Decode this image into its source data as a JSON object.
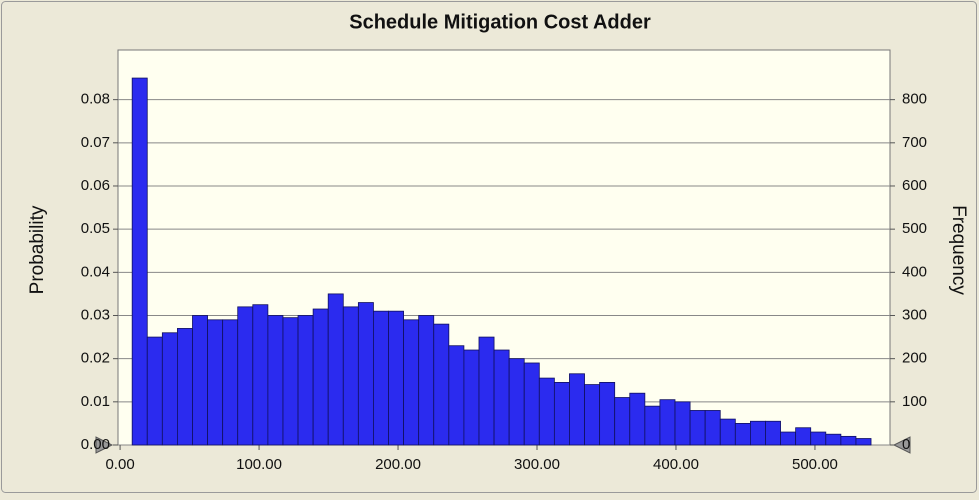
{
  "chart_data": {
    "type": "histogram",
    "title": "Schedule Mitigation Cost Adder",
    "ylabel": "Probability",
    "y2label": "Frequency",
    "color": "#2b2bef",
    "grid": true,
    "bins": [
      8.7,
      19.55,
      30.4,
      41.25,
      52.1,
      62.95,
      73.8,
      84.65,
      95.5,
      106.35,
      117.2,
      128.05,
      138.9,
      149.75,
      160.6,
      171.45,
      182.3,
      193.15,
      204,
      214.85,
      225.7,
      236.55,
      247.4,
      258.25,
      269.1,
      279.95,
      290.8,
      301.65,
      312.5,
      323.35,
      334.2,
      345.05,
      355.9,
      366.75,
      377.6,
      388.45,
      399.3,
      410.15,
      421,
      431.85,
      442.7,
      453.55,
      464.4,
      475.25,
      486.1,
      496.95,
      507.8,
      518.65,
      529.5,
      540.35
    ],
    "values": [
      0.085,
      0.025,
      0.026,
      0.027,
      0.03,
      0.029,
      0.029,
      0.032,
      0.0325,
      0.03,
      0.0295,
      0.03,
      0.0315,
      0.035,
      0.032,
      0.033,
      0.031,
      0.031,
      0.029,
      0.03,
      0.028,
      0.023,
      0.022,
      0.025,
      0.022,
      0.02,
      0.019,
      0.0155,
      0.0145,
      0.0165,
      0.014,
      0.0145,
      0.011,
      0.012,
      0.009,
      0.0105,
      0.01,
      0.008,
      0.008,
      0.006,
      0.005,
      0.0055,
      0.0055,
      0.003,
      0.004,
      0.003,
      0.0025,
      0.002,
      0.0015
    ],
    "xlim": [
      -1.5,
      554
    ],
    "xticks": [
      {
        "value": 0,
        "label": "0.00"
      },
      {
        "value": 100,
        "label": "100.00"
      },
      {
        "value": 200,
        "label": "200.00"
      },
      {
        "value": 300,
        "label": "300.00"
      },
      {
        "value": 400,
        "label": "400.00"
      },
      {
        "value": 500,
        "label": "500.00"
      }
    ],
    "ylim": [
      0,
      0.0915
    ],
    "yticks": [
      {
        "value": 0,
        "label": "0.00"
      },
      0.01,
      0.02,
      0.03,
      0.04,
      0.05,
      0.06,
      0.07,
      0.08
    ],
    "y2lim": [
      0,
      915
    ],
    "y2ticks": [
      0,
      100,
      200,
      300,
      400,
      500,
      600,
      700,
      800
    ]
  }
}
